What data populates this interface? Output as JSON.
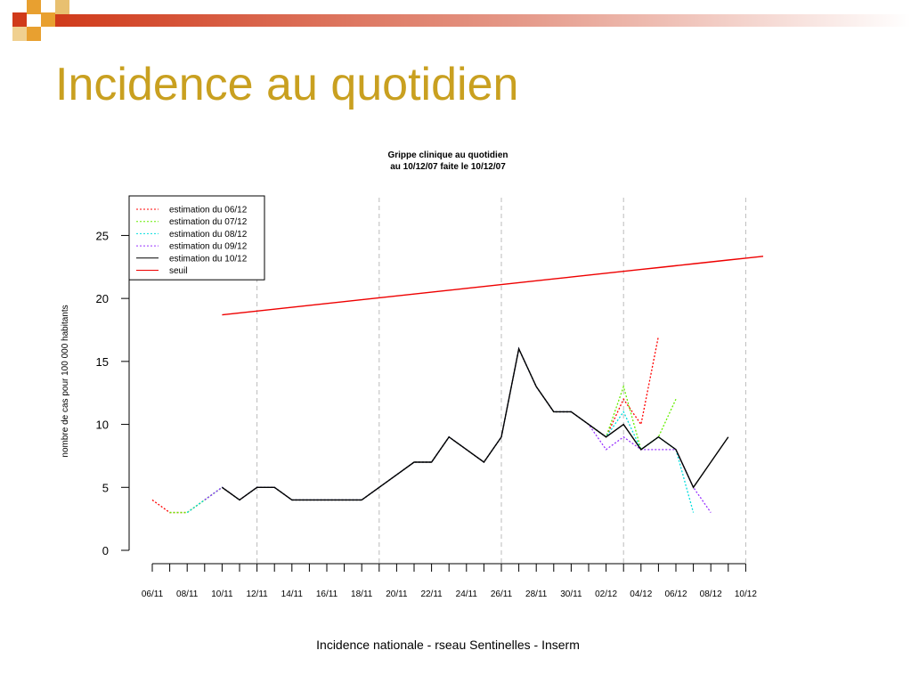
{
  "slide": {
    "title": "Incidence au quotidien",
    "footer": "Incidence nationale - rseau Sentinelles - Inserm"
  },
  "chart_data": {
    "type": "line",
    "title": "Grippe clinique  au quotidien",
    "subtitle": "au 10/12/07 faite le 10/12/07",
    "y_label": "nombre de cas pour 100 000 habitants",
    "categories": [
      "06/11",
      null,
      "08/11",
      null,
      "10/11",
      null,
      "12/11",
      null,
      "14/11",
      null,
      "16/11",
      null,
      "18/11",
      null,
      "20/11",
      null,
      "22/11",
      null,
      "24/11",
      null,
      "26/11",
      null,
      "28/11",
      null,
      "30/11",
      null,
      "02/12",
      null,
      "04/12",
      null,
      "06/12",
      null,
      "08/12",
      null,
      "10/12",
      null
    ],
    "ylim": [
      0,
      28
    ],
    "yticks": [
      0,
      5,
      10,
      15,
      20,
      25
    ],
    "legend": "top-left",
    "series": [
      {
        "name": "estimation du 06/12",
        "color": "#ff0000",
        "style": "dotted",
        "values": [
          4,
          3,
          3,
          4,
          5,
          4,
          5,
          5,
          4,
          4,
          4,
          4,
          4,
          5,
          6,
          7,
          7,
          9,
          8,
          7,
          9,
          16,
          13,
          11,
          11,
          10,
          9,
          12,
          10,
          17,
          null,
          null,
          null,
          null,
          null,
          null
        ]
      },
      {
        "name": "estimation du 07/12",
        "color": "#66ee00",
        "style": "dotted",
        "values": [
          null,
          3,
          3,
          4,
          5,
          4,
          5,
          5,
          4,
          4,
          4,
          4,
          4,
          5,
          6,
          7,
          7,
          9,
          8,
          7,
          9,
          16,
          13,
          11,
          11,
          10,
          9,
          13,
          8,
          9,
          12,
          null,
          null,
          null,
          null,
          null
        ]
      },
      {
        "name": "estimation du 08/12",
        "color": "#00dddd",
        "style": "dotted",
        "values": [
          null,
          null,
          3,
          4,
          5,
          4,
          5,
          5,
          4,
          4,
          4,
          4,
          4,
          5,
          6,
          7,
          7,
          9,
          8,
          7,
          9,
          16,
          13,
          11,
          11,
          10,
          9,
          11,
          8,
          9,
          8,
          3,
          null,
          null,
          null,
          null
        ]
      },
      {
        "name": "estimation du 09/12",
        "color": "#9933ff",
        "style": "dotted",
        "values": [
          null,
          null,
          null,
          4,
          5,
          4,
          5,
          5,
          4,
          4,
          4,
          4,
          4,
          5,
          6,
          7,
          7,
          9,
          8,
          7,
          9,
          16,
          13,
          11,
          11,
          10,
          8,
          9,
          8,
          8,
          8,
          5,
          3,
          null,
          null,
          null
        ]
      },
      {
        "name": "estimation du 10/12",
        "color": "#000000",
        "style": "solid",
        "values": [
          null,
          null,
          null,
          null,
          5,
          4,
          5,
          5,
          4,
          4,
          4,
          4,
          4,
          5,
          6,
          7,
          7,
          9,
          8,
          7,
          9,
          16,
          13,
          11,
          11,
          10,
          9,
          10,
          8,
          9,
          8,
          5,
          7,
          9,
          null,
          null
        ]
      },
      {
        "name": "seuil",
        "color": "#ee0000",
        "style": "solid",
        "values": [
          null,
          null,
          null,
          null,
          18.7,
          18.85,
          19,
          19.15,
          19.3,
          19.45,
          19.6,
          19.75,
          19.9,
          20.05,
          20.2,
          20.35,
          20.5,
          20.65,
          20.8,
          20.95,
          21.1,
          21.25,
          21.4,
          21.55,
          21.7,
          21.85,
          22,
          22.15,
          22.3,
          22.45,
          22.6,
          22.75,
          22.9,
          23.05,
          23.2,
          23.35
        ]
      }
    ]
  }
}
